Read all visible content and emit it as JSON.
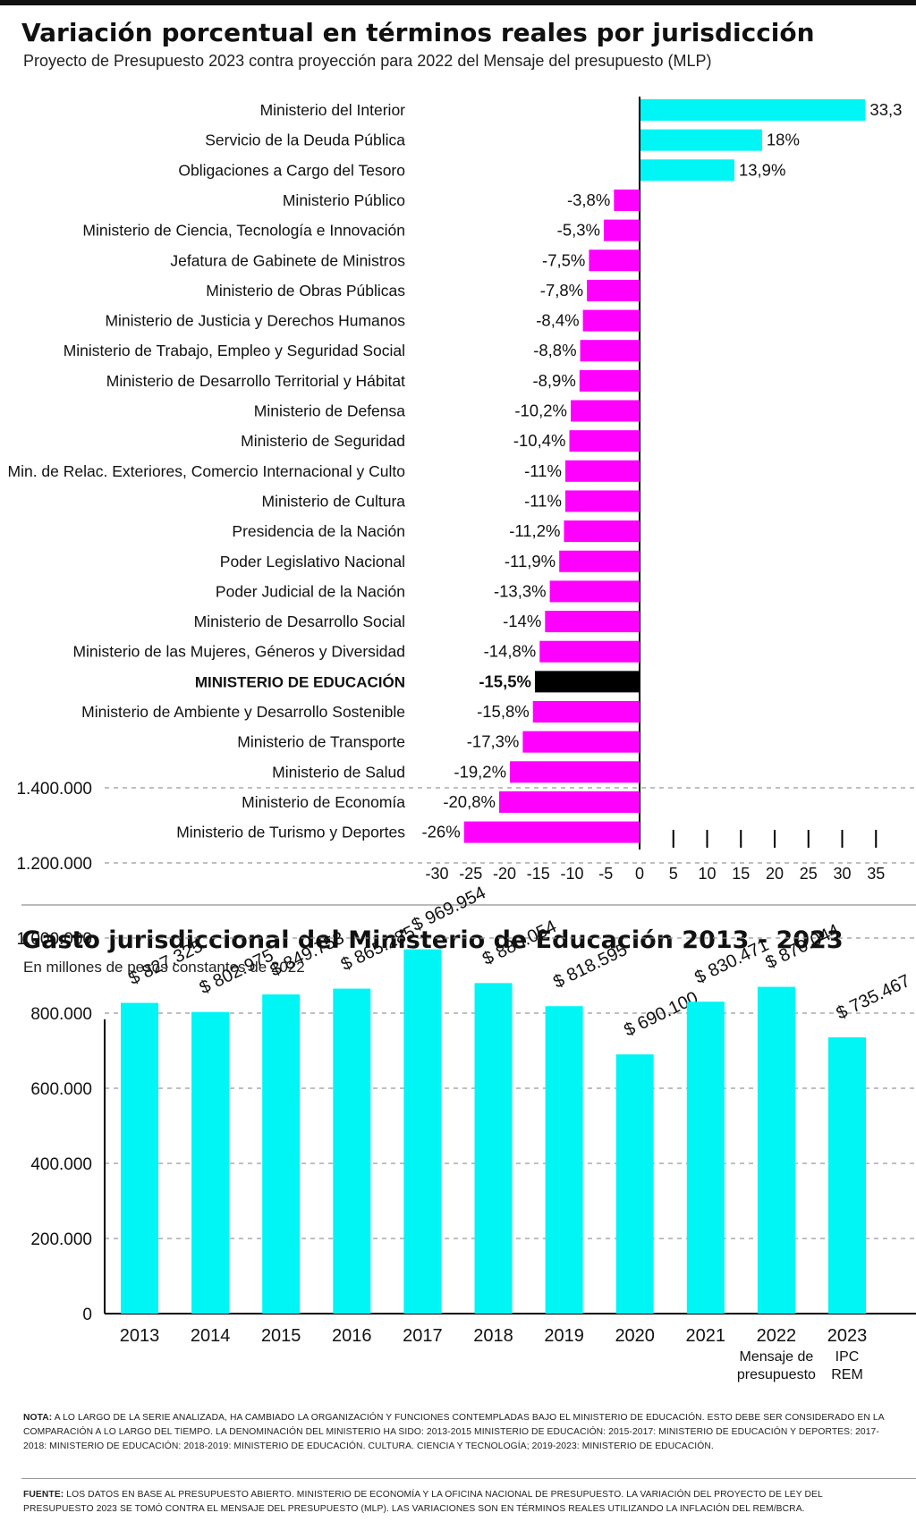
{
  "chart_data": [
    {
      "type": "bar",
      "orientation": "horizontal",
      "title": "Variación porcentual en términos reales por jurisdicción",
      "subtitle": "Proyecto de Presupuesto 2023 contra proyección para 2022 del Mensaje del presupuesto (MLP)",
      "categories": [
        "Ministerio del Interior",
        "Servicio de la Deuda Pública",
        "Obligaciones a Cargo del Tesoro",
        "Ministerio Público",
        "Ministerio de Ciencia, Tecnología e Innovación",
        "Jefatura de Gabinete de Ministros",
        "Ministerio de Obras Públicas",
        "Ministerio de Justicia y Derechos Humanos",
        "Ministerio de Trabajo, Empleo y Seguridad Social",
        "Ministerio de Desarrollo Territorial y Hábitat",
        "Ministerio de Defensa",
        "Ministerio de Seguridad",
        "Min. de Relac. Exteriores, Comercio Internacional y Culto",
        "Ministerio de Cultura",
        "Presidencia de la Nación",
        "Poder Legislativo Nacional",
        "Poder Judicial de la Nación",
        "Ministerio de Desarrollo Social",
        "Ministerio de las Mujeres, Géneros y Diversidad",
        "MINISTERIO DE EDUCACIÓN",
        "Ministerio de Ambiente y Desarrollo Sostenible",
        "Ministerio de Transporte",
        "Ministerio de Salud",
        "Ministerio de Economía",
        "Ministerio de Turismo y Deportes"
      ],
      "values": [
        33.3,
        18,
        13.9,
        -3.8,
        -5.3,
        -7.5,
        -7.8,
        -8.4,
        -8.8,
        -8.9,
        -10.2,
        -10.4,
        -11,
        -11,
        -11.2,
        -11.9,
        -13.3,
        -14,
        -14.8,
        -15.5,
        -15.8,
        -17.3,
        -19.2,
        -20.8,
        -26
      ],
      "value_labels": [
        "33,3",
        "18%",
        "13,9%",
        "-3,8%",
        "-5,3%",
        "-7,5%",
        "-7,8%",
        "-8,4%",
        "-8,8%",
        "-8,9%",
        "-10,2%",
        "-10,4%",
        "-11%",
        "-11%",
        "-11,2%",
        "-11,9%",
        "-13,3%",
        "-14%",
        "-14,8%",
        "-15,5%",
        "-15,8%",
        "-17,3%",
        "-19,2%",
        "-20,8%",
        "-26%"
      ],
      "highlight": "MINISTERIO DE EDUCACIÓN",
      "xlim": [
        -30,
        35
      ],
      "x_ticks": [
        "-30",
        "-25",
        "-20",
        "-15",
        "-10",
        "-5",
        "0",
        "5",
        "10",
        "15",
        "20",
        "25",
        "30",
        "35"
      ],
      "x_tick_values": [
        -30,
        -25,
        -20,
        -15,
        -10,
        -5,
        0,
        5,
        10,
        15,
        20,
        25,
        30,
        35
      ],
      "colors": {
        "positive": "#00f5f5",
        "negative": "#ff00ff",
        "highlight": "#000000"
      }
    },
    {
      "type": "bar",
      "title": "Gasto jurisdiccional del Ministerio de Educación 2013 - 2023",
      "subtitle": "En millones de pesos constantes de 2022",
      "categories": [
        "2013",
        "2014",
        "2015",
        "2016",
        "2017",
        "2018",
        "2019",
        "2020",
        "2021",
        "2022",
        "2023"
      ],
      "category_sublabels": [
        [
          "",
          ""
        ],
        [
          "",
          ""
        ],
        [
          "",
          ""
        ],
        [
          "",
          ""
        ],
        [
          "",
          ""
        ],
        [
          "",
          ""
        ],
        [
          "",
          ""
        ],
        [
          "",
          ""
        ],
        [
          "",
          ""
        ],
        [
          "Mensaje de",
          "presupuesto"
        ],
        [
          "IPC",
          "REM"
        ]
      ],
      "values": [
        827325,
        802975,
        849753,
        865285,
        969954,
        880054,
        818595,
        690100,
        830471,
        870044,
        735467
      ],
      "value_labels": [
        "$ 827.325",
        "$ 802.975",
        "$ 849.753",
        "$ 865.285",
        "$ 969.954",
        "$ 880.054",
        "$ 818.595",
        "$ 690.100",
        "$ 830.471",
        "$ 870.044",
        "$ 735.467"
      ],
      "ylim": [
        0,
        1500000
      ],
      "y_tick_values": [
        0,
        200000,
        400000,
        600000,
        800000,
        1000000,
        1200000,
        1400000
      ],
      "y_ticks": [
        "0",
        "200.000",
        "400.000",
        "600.000",
        "800.000",
        "1.000.000",
        "1.200.000",
        "1.400.000"
      ],
      "grid": "horizontal dashed",
      "colors": {
        "bar": "#00f5f5"
      }
    }
  ],
  "notes": {
    "nota_label": "NOTA:",
    "nota_text": " A lo largo de la serie analizada, ha cambiado la organización y funciones contempladas bajo el Ministerio de Educación. Esto debe ser considerado en la comparación a lo largo del tiempo. La denominación del ministerio ha sido: 2013-2015 Ministerio de Educación: 2015-2017: Ministerio de Educación y Deportes: 2017-2018: Ministerio de Educación: 2018-2019: Ministerio de Educación. Cultura. Ciencia y Tecnología; 2019-2023: Ministerio de Educación.",
    "fuente_label": "FUENTE:",
    "fuente_text": " Los datos en base al presupuesto abierto. Ministerio de Economía y la Oficina Nacional de Presupuesto. La variación del proyecto de ley del presupuesto 2023 se tomó contra el mensaje del presupuesto (MLP). Las variaciones son en términos reales utilizando la inflación del REM/BCRA."
  }
}
